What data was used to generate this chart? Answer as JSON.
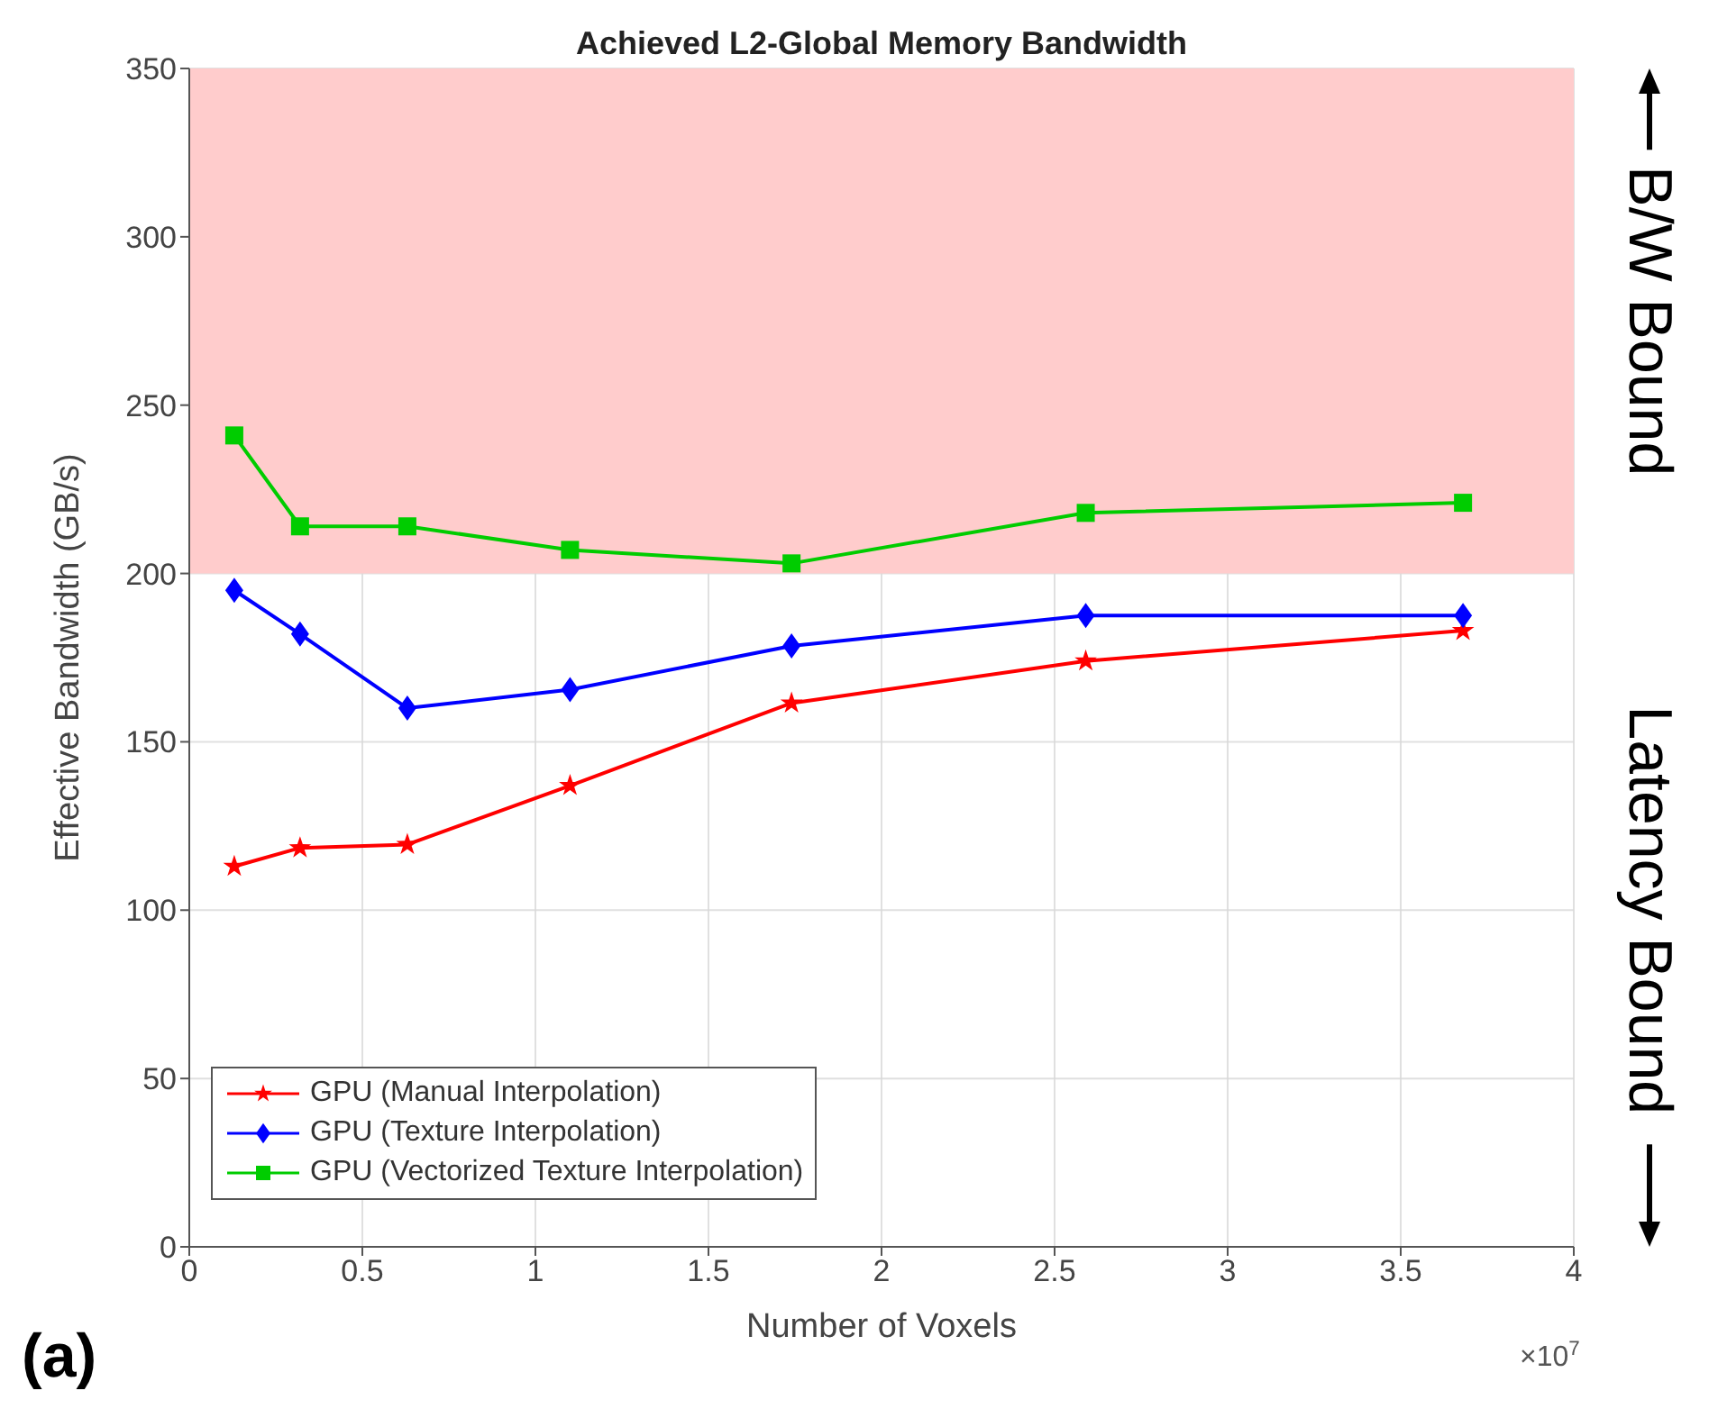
{
  "chart_data": {
    "type": "line",
    "title": "Achieved L2-Global Memory Bandwidth",
    "xlabel": "Number of Voxels",
    "ylabel": "Effective Bandwidth (GB/s)",
    "x": [
      0.13,
      0.32,
      0.63,
      1.1,
      1.74,
      2.59,
      3.68
    ],
    "series": [
      {
        "name": "GPU (Manual Interpolation)",
        "color": "#ff0000",
        "marker": "star",
        "values": [
          113,
          118.5,
          119.5,
          137,
          161.5,
          174,
          183
        ]
      },
      {
        "name": "GPU (Texture Interpolation)",
        "color": "#0000ff",
        "marker": "diamond",
        "values": [
          195,
          182,
          160,
          165.5,
          178.5,
          187.5,
          187.5
        ]
      },
      {
        "name": "GPU (Vectorized Texture Interpolation)",
        "color": "#00cc00",
        "marker": "square",
        "values": [
          241,
          214,
          214,
          207,
          203,
          218,
          221
        ]
      }
    ],
    "xlim": [
      0,
      4
    ],
    "xticks": [
      0,
      0.5,
      1,
      1.5,
      2,
      2.5,
      3,
      3.5,
      4
    ],
    "ylim": [
      0,
      350
    ],
    "yticks": [
      0,
      50,
      100,
      150,
      200,
      250,
      300,
      350
    ],
    "bands": [
      {
        "axis": "y",
        "from": 200,
        "to": 350,
        "color": "#ffcccc",
        "label": "B/W Bound"
      }
    ],
    "annotations": [
      "Latency Bound",
      "×10$^{7}$",
      "(a)"
    ],
    "grid": true,
    "legend": "bottom left",
    "line_style": "solid"
  }
}
